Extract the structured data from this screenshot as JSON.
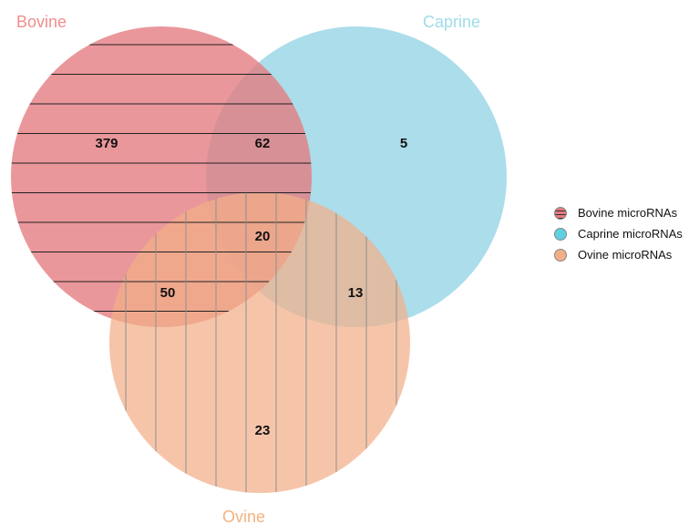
{
  "sets": [
    {
      "id": "bovine",
      "label": "Bovine",
      "color": "#e47a7f",
      "label_color": "#ef8e8a",
      "pattern": "horizontal-lines"
    },
    {
      "id": "caprine",
      "label": "Caprine",
      "color": "#94d4e6",
      "label_color": "#9fdceb",
      "pattern": "none"
    },
    {
      "id": "ovine",
      "label": "Ovine",
      "color": "#f2ae88",
      "label_color": "#f3b27f",
      "pattern": "vertical-lines"
    }
  ],
  "regions": [
    {
      "id": "bovine-only",
      "sets": [
        "bovine"
      ],
      "value": "379"
    },
    {
      "id": "bovine-caprine",
      "sets": [
        "bovine",
        "caprine"
      ],
      "value": "62"
    },
    {
      "id": "caprine-only",
      "sets": [
        "caprine"
      ],
      "value": "5"
    },
    {
      "id": "all-three",
      "sets": [
        "bovine",
        "caprine",
        "ovine"
      ],
      "value": "20"
    },
    {
      "id": "bovine-ovine",
      "sets": [
        "bovine",
        "ovine"
      ],
      "value": "50"
    },
    {
      "id": "caprine-ovine",
      "sets": [
        "caprine",
        "ovine"
      ],
      "value": "13"
    },
    {
      "id": "ovine-only",
      "sets": [
        "ovine"
      ],
      "value": "23"
    }
  ],
  "legend": {
    "items": [
      {
        "label": "Bovine microRNAs",
        "color": "#e47a7f",
        "icon": "striped-circle-icon"
      },
      {
        "label": "Caprine microRNAs",
        "color": "#5fd0e0",
        "icon": "circle-icon"
      },
      {
        "label": "Ovine microRNAs",
        "color": "#f2ae88",
        "icon": "circle-icon"
      }
    ]
  }
}
